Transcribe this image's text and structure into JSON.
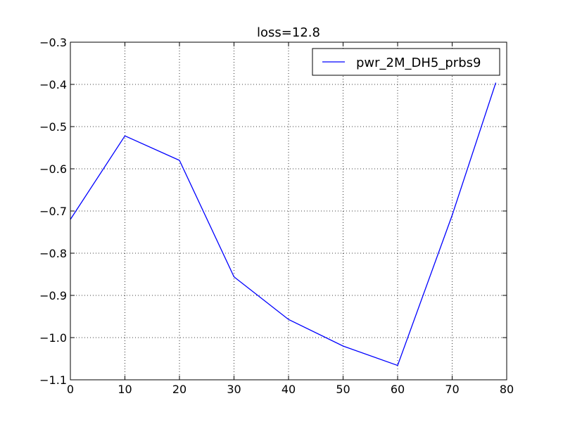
{
  "chart_data": {
    "type": "line",
    "title": "loss=12.8",
    "xlabel": "",
    "ylabel": "",
    "xlim": [
      0,
      80
    ],
    "ylim": [
      -1.1,
      -0.3
    ],
    "x_ticks": [
      0,
      10,
      20,
      30,
      40,
      50,
      60,
      70,
      80
    ],
    "y_ticks": [
      -0.3,
      -0.4,
      -0.5,
      -0.6,
      -0.7,
      -0.8,
      -0.9,
      -1.0,
      -1.1
    ],
    "x_tick_labels": [
      "0",
      "10",
      "20",
      "30",
      "40",
      "50",
      "60",
      "70",
      "80"
    ],
    "y_tick_labels": [
      "−0.3",
      "−0.4",
      "−0.5",
      "−0.6",
      "−0.7",
      "−0.8",
      "−0.9",
      "−1.0",
      "−1.1"
    ],
    "grid": true,
    "legend_position": "top-right",
    "series": [
      {
        "name": "pwr_2M_DH5_prbs9",
        "color": "#0000ff",
        "x": [
          0,
          10,
          20,
          30,
          40,
          50,
          60,
          70,
          78
        ],
        "y": [
          -0.72,
          -0.522,
          -0.58,
          -0.856,
          -0.957,
          -1.02,
          -1.066,
          -0.71,
          -0.396
        ]
      }
    ]
  }
}
